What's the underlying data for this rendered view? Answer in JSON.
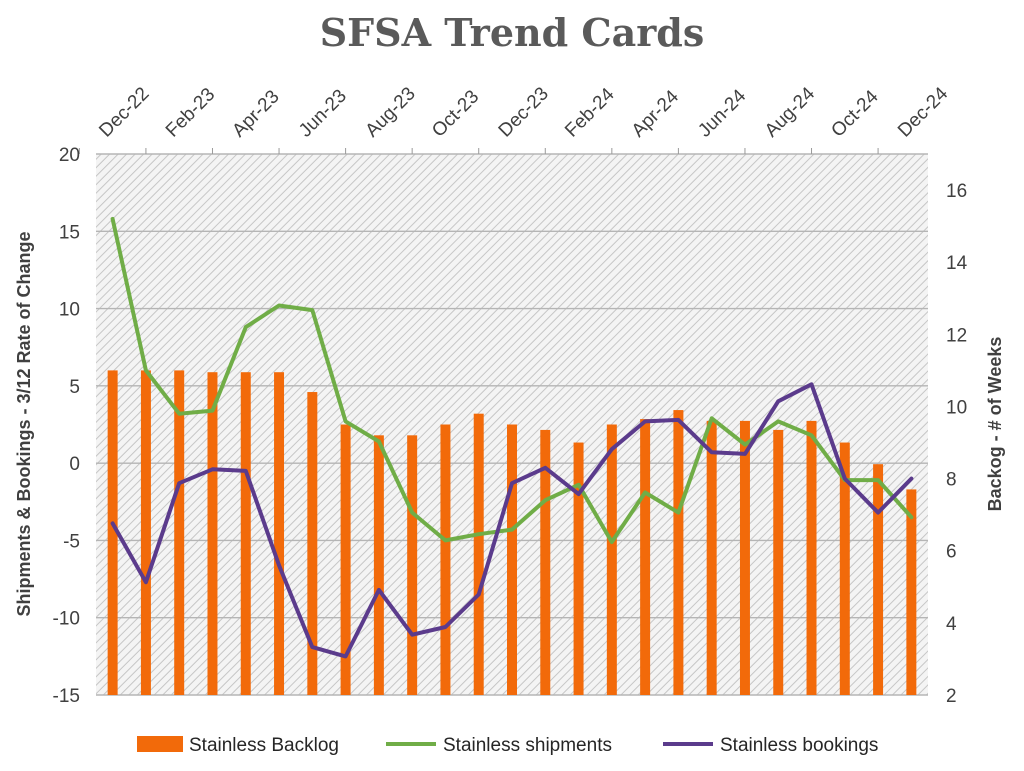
{
  "chart_data": {
    "type": "bar+line",
    "title": "SFSA Trend Cards",
    "x_tick_labels": [
      "Dec-22",
      "Feb-23",
      "Apr-23",
      "Jun-23",
      "Aug-23",
      "Oct-23",
      "Dec-23",
      "Feb-24",
      "Apr-24",
      "Jun-24",
      "Aug-24",
      "Oct-24",
      "Dec-24"
    ],
    "categories": [
      "Dec-22",
      "Jan-23",
      "Feb-23",
      "Mar-23",
      "Apr-23",
      "May-23",
      "Jun-23",
      "Jul-23",
      "Aug-23",
      "Sep-23",
      "Oct-23",
      "Nov-23",
      "Dec-23",
      "Jan-24",
      "Feb-24",
      "Mar-24",
      "Apr-24",
      "May-24",
      "Jun-24",
      "Jul-24",
      "Aug-24",
      "Sep-24",
      "Oct-24",
      "Nov-24",
      "Dec-24"
    ],
    "y_left": {
      "label": "Shipments & Bookings - 3/12  Rate of Change",
      "min": -15,
      "max": 20,
      "step": 5
    },
    "y_right": {
      "label": "Backog - # of Weeks",
      "min": 2,
      "max": 17,
      "ticks": [
        2,
        4,
        6,
        8,
        10,
        12,
        14,
        16
      ]
    },
    "series": [
      {
        "name": "Stainless Backlog",
        "kind": "bar",
        "axis": "right",
        "color": "#f26a0a",
        "values": [
          11.0,
          11.0,
          11.0,
          10.95,
          10.95,
          10.95,
          10.4,
          9.5,
          9.2,
          9.2,
          9.5,
          9.8,
          9.5,
          9.35,
          9.0,
          9.5,
          9.65,
          9.9,
          9.6,
          9.6,
          9.35,
          9.6,
          9.0,
          8.4,
          7.7
        ]
      },
      {
        "name": "Stainless shipments",
        "kind": "line",
        "axis": "left",
        "color": "#70ad47",
        "values": [
          15.8,
          6.0,
          3.2,
          3.4,
          8.8,
          10.2,
          9.9,
          2.7,
          1.4,
          -3.2,
          -5.0,
          -4.6,
          -4.3,
          -2.4,
          -1.4,
          -5.1,
          -1.9,
          -3.2,
          2.9,
          1.2,
          2.7,
          1.8,
          -1.1,
          -1.1,
          -3.5
        ]
      },
      {
        "name": "Stainless bookings",
        "kind": "line",
        "axis": "left",
        "color": "#5b3b8c",
        "values": [
          -3.9,
          -7.7,
          -1.3,
          -0.4,
          -0.5,
          -6.6,
          -11.9,
          -12.5,
          -8.2,
          -11.1,
          -10.6,
          -8.5,
          -1.3,
          -0.3,
          -2.0,
          0.9,
          2.7,
          2.8,
          0.7,
          0.6,
          4.0,
          5.1,
          -1.0,
          -3.2,
          -1.0
        ]
      }
    ],
    "grid": true,
    "plot_background": "hatched-gray",
    "legend_position": "bottom"
  }
}
